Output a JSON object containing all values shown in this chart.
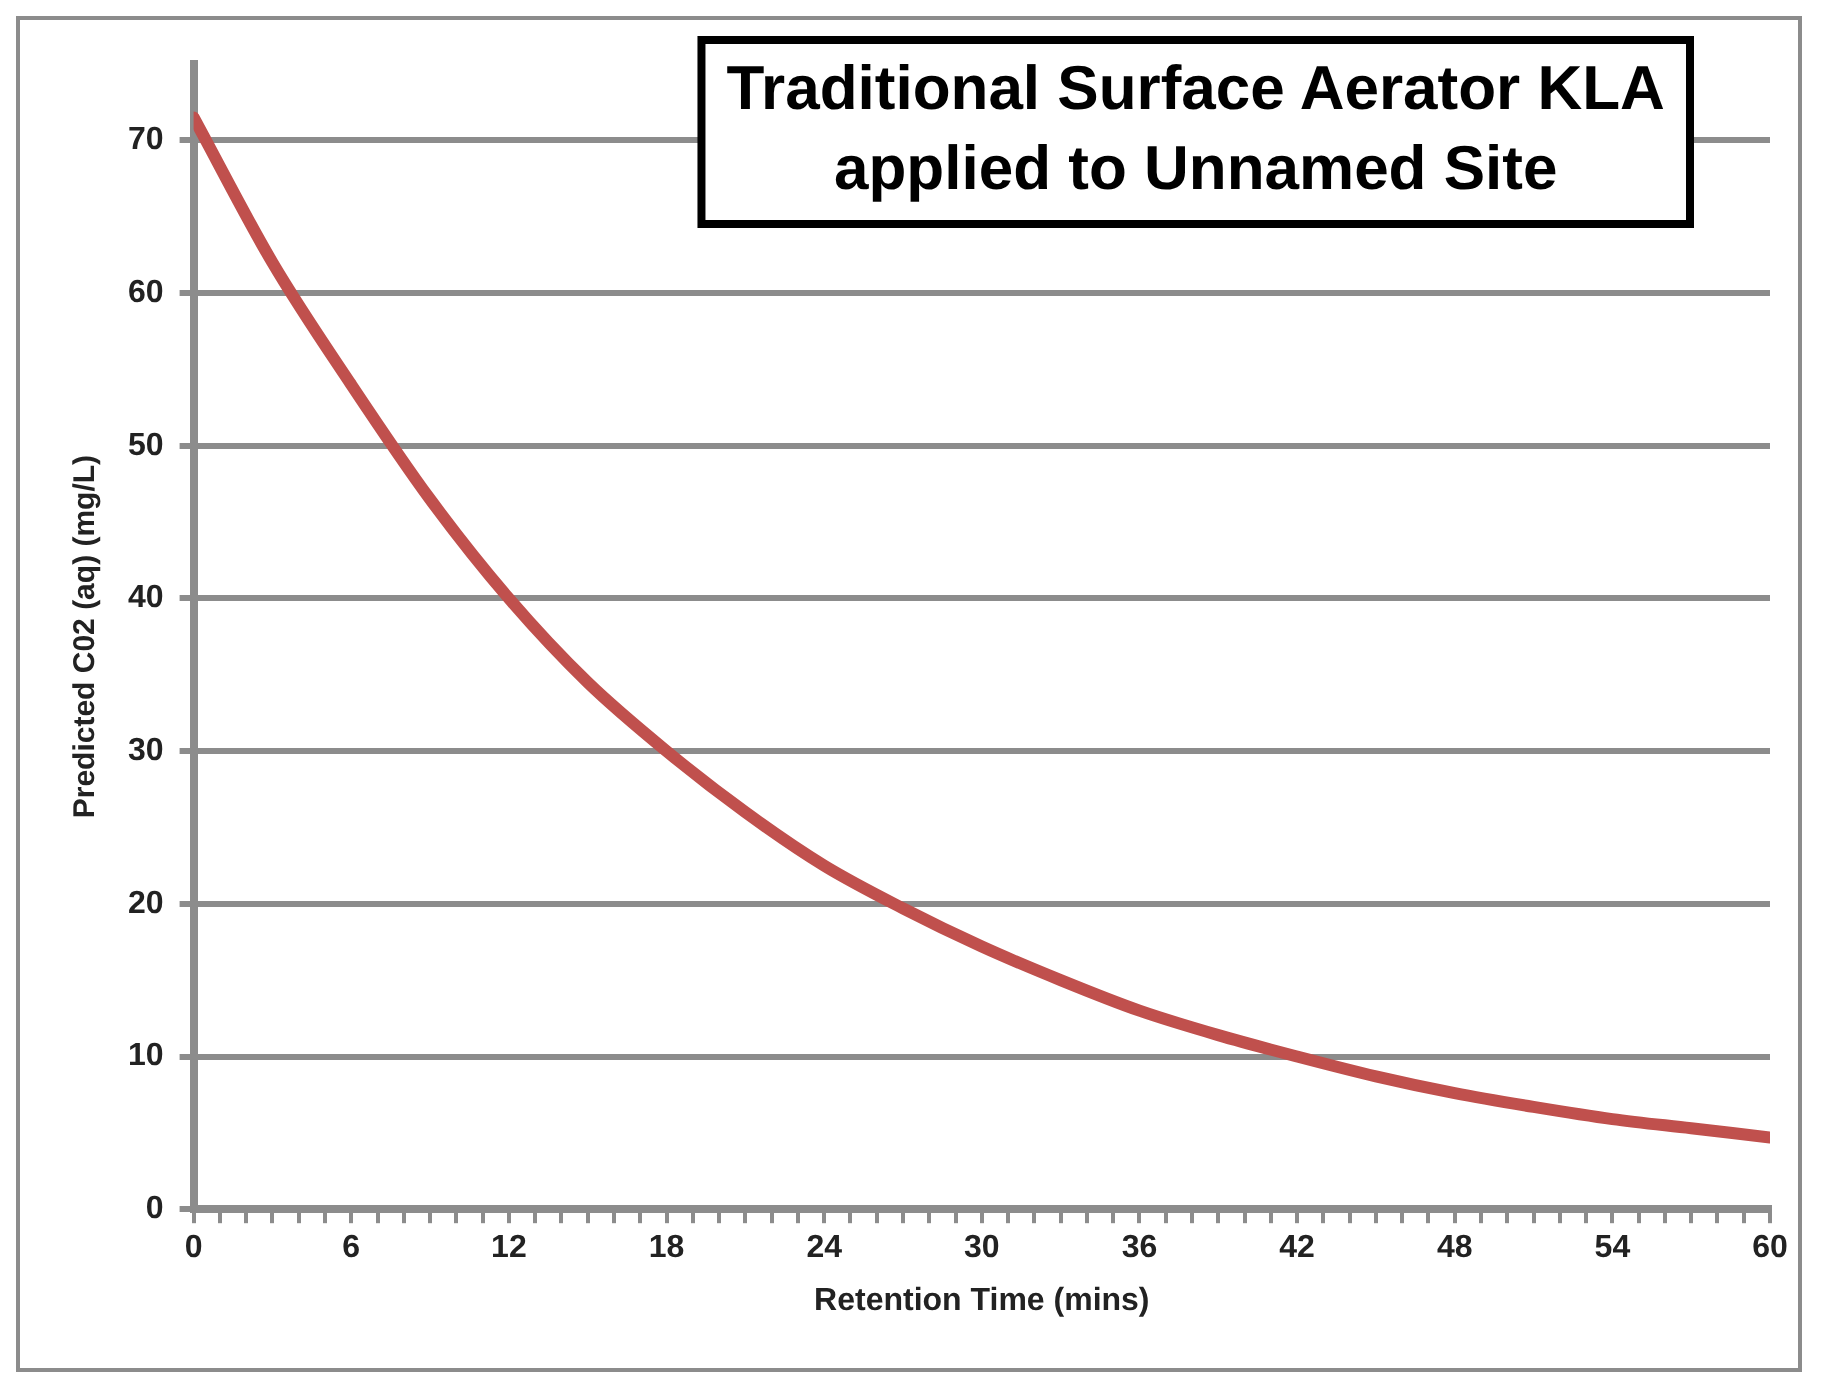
{
  "chart_data": {
    "type": "line",
    "title": "Traditional Surface Aerator KLA applied to Unnamed Site",
    "xlabel": "Retention Time (mins)",
    "ylabel": "Predicted C02 (aq) (mg/L)",
    "series": [
      {
        "color": "#c0504d",
        "x": [
          0,
          3,
          6,
          9,
          12,
          15,
          18,
          21,
          24,
          27,
          30,
          33,
          36,
          39,
          42,
          45,
          48,
          51,
          54,
          57,
          60
        ],
        "values": [
          71.5,
          62,
          54,
          46.5,
          40,
          34.5,
          30,
          26,
          22.5,
          19.7,
          17.2,
          15,
          13,
          11.4,
          10,
          8.7,
          7.6,
          6.7,
          5.9,
          5.3,
          4.7
        ]
      }
    ],
    "xlim": [
      0,
      60
    ],
    "xticks": [
      0,
      {
        "value": 1,
        "label": null
      },
      {
        "value": 2,
        "label": null
      },
      {
        "value": 3,
        "label": null
      },
      {
        "value": 4,
        "label": null
      },
      {
        "value": 5,
        "label": null
      },
      6,
      {
        "value": 7,
        "label": null
      },
      {
        "value": 8,
        "label": null
      },
      {
        "value": 9,
        "label": null
      },
      {
        "value": 10,
        "label": null
      },
      {
        "value": 11,
        "label": null
      },
      12,
      {
        "value": 13,
        "label": null
      },
      {
        "value": 14,
        "label": null
      },
      {
        "value": 15,
        "label": null
      },
      {
        "value": 16,
        "label": null
      },
      {
        "value": 17,
        "label": null
      },
      18,
      {
        "value": 19,
        "label": null
      },
      {
        "value": 20,
        "label": null
      },
      {
        "value": 21,
        "label": null
      },
      {
        "value": 22,
        "label": null
      },
      {
        "value": 23,
        "label": null
      },
      24,
      {
        "value": 25,
        "label": null
      },
      {
        "value": 26,
        "label": null
      },
      {
        "value": 27,
        "label": null
      },
      {
        "value": 28,
        "label": null
      },
      {
        "value": 29,
        "label": null
      },
      30,
      {
        "value": 31,
        "label": null
      },
      {
        "value": 32,
        "label": null
      },
      {
        "value": 33,
        "label": null
      },
      {
        "value": 34,
        "label": null
      },
      {
        "value": 35,
        "label": null
      },
      36,
      {
        "value": 37,
        "label": null
      },
      {
        "value": 38,
        "label": null
      },
      {
        "value": 39,
        "label": null
      },
      {
        "value": 40,
        "label": null
      },
      {
        "value": 41,
        "label": null
      },
      42,
      {
        "value": 43,
        "label": null
      },
      {
        "value": 44,
        "label": null
      },
      {
        "value": 45,
        "label": null
      },
      {
        "value": 46,
        "label": null
      },
      {
        "value": 47,
        "label": null
      },
      48,
      {
        "value": 49,
        "label": null
      },
      {
        "value": 50,
        "label": null
      },
      {
        "value": 51,
        "label": null
      },
      {
        "value": 52,
        "label": null
      },
      {
        "value": 53,
        "label": null
      },
      54,
      {
        "value": 55,
        "label": null
      },
      {
        "value": 56,
        "label": null
      },
      {
        "value": 57,
        "label": null
      },
      {
        "value": 58,
        "label": null
      },
      {
        "value": 59,
        "label": null
      },
      60
    ],
    "ylim": [
      0,
      75
    ],
    "yticks": [
      0,
      10,
      20,
      30,
      40,
      50,
      60,
      70
    ],
    "grid": "y",
    "marker": "none",
    "line_style": "solid",
    "legend": false
  }
}
